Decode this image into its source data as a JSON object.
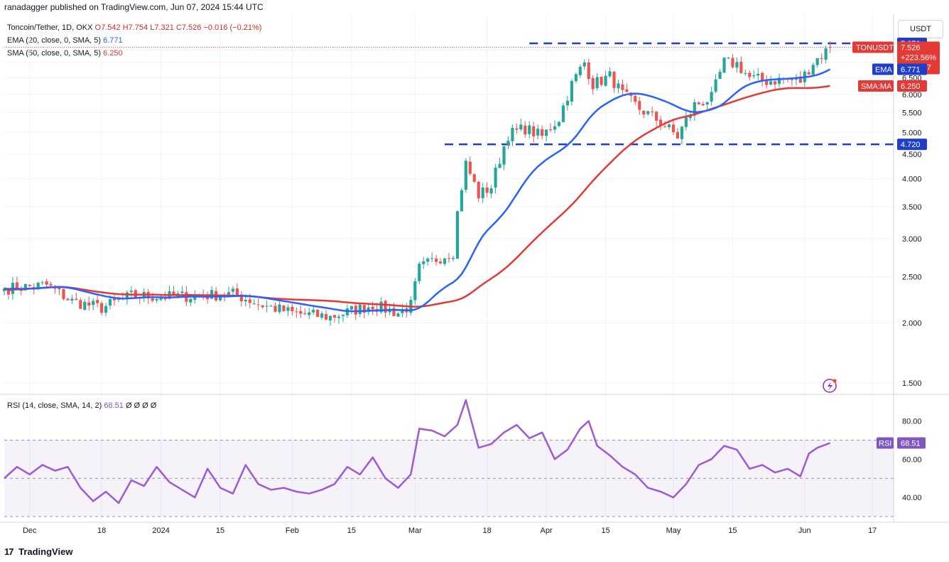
{
  "header": {
    "published": "ranadagger published on TradingView.com, Jun 07, 2024 15:44 UTC"
  },
  "legend": {
    "symbol": "Toncoin/Tether, 1D, OKX",
    "open": "O7.542",
    "high": "H7.754",
    "low": "L7.321",
    "close": "C7.526",
    "change": "−0.016 (−0.21%)",
    "ema_label": "EMA (20, close, 0, SMA, 5)",
    "ema_value": "6.771",
    "sma_label": "SMA (50, close, 0, SMA, 5)",
    "sma_value": "6.250"
  },
  "rsi_legend": {
    "label": "RSI (14, close, SMA, 14, 2)",
    "value": "68.51",
    "extras": "Ø Ø Ø Ø"
  },
  "currency": "USDT",
  "price_tag": {
    "name": "TONUSDT",
    "price": "7.526",
    "change": "+223.56%",
    "countdown": "08:15:27"
  },
  "ema_tag": {
    "name": "EMA",
    "value": "6.771"
  },
  "sma_tag": {
    "name": "SMA:MA",
    "value": "6.250"
  },
  "rsi_tag": {
    "name": "RSI",
    "value": "68.51"
  },
  "footer": {
    "logo_text": "TradingView",
    "logo_mark": "17"
  },
  "colors": {
    "up": "#26a69a",
    "down": "#ef5350",
    "ema": "#2962ff",
    "sma": "#e53935",
    "rsi": "#9c5bd1",
    "level": "#1e3ecb",
    "tag_blue": "#1e3ecb",
    "tag_red": "#e53935"
  },
  "chart_data": [
    {
      "type": "candlestick",
      "title": "Toncoin/Tether, 1D, OKX",
      "y_scale": "log",
      "ylim": [
        1.42,
        8.1
      ],
      "y_ticks": [
        7.0,
        6.5,
        6.0,
        5.5,
        5.0,
        4.5,
        4.0,
        3.5,
        3.0,
        2.5,
        2.0,
        1.5
      ],
      "y_tick_labels": [
        "7.000",
        "6.500",
        "6.000",
        "5.500",
        "5.000",
        "4.500",
        "4.000",
        "3.500",
        "3.000",
        "2.500",
        "2.000",
        "1.500"
      ],
      "x_range": [
        "2023-11-25",
        "2024-06-22"
      ],
      "x_ticks": [
        {
          "date": "2023-12-01",
          "label": "Dec"
        },
        {
          "date": "2023-12-18",
          "label": "18"
        },
        {
          "date": "2024-01-01",
          "label": "2024"
        },
        {
          "date": "2024-01-15",
          "label": "15"
        },
        {
          "date": "2024-02-01",
          "label": "Feb"
        },
        {
          "date": "2024-02-15",
          "label": "15"
        },
        {
          "date": "2024-03-01",
          "label": "Mar"
        },
        {
          "date": "2024-03-18",
          "label": "18"
        },
        {
          "date": "2024-04-01",
          "label": "Apr"
        },
        {
          "date": "2024-04-15",
          "label": "15"
        },
        {
          "date": "2024-05-01",
          "label": "May"
        },
        {
          "date": "2024-05-15",
          "label": "15"
        },
        {
          "date": "2024-06-01",
          "label": "Jun"
        },
        {
          "date": "2024-06-17",
          "label": "17"
        }
      ],
      "horizontal_levels": [
        {
          "value": 7.67,
          "label": "7.670",
          "x_start": "2024-03-28"
        },
        {
          "value": 4.72,
          "label": "4.720",
          "x_start": "2024-03-08"
        }
      ],
      "anchors": [
        {
          "date": "2023-11-25",
          "close": 2.36
        },
        {
          "date": "2023-12-05",
          "close": 2.4
        },
        {
          "date": "2023-12-11",
          "close": 2.22
        },
        {
          "date": "2023-12-18",
          "close": 2.15
        },
        {
          "date": "2023-12-25",
          "close": 2.28
        },
        {
          "date": "2024-01-01",
          "close": 2.27
        },
        {
          "date": "2024-01-10",
          "close": 2.28
        },
        {
          "date": "2024-01-18",
          "close": 2.3
        },
        {
          "date": "2024-01-25",
          "close": 2.18
        },
        {
          "date": "2024-02-01",
          "close": 2.1
        },
        {
          "date": "2024-02-10",
          "close": 2.06
        },
        {
          "date": "2024-02-20",
          "close": 2.18
        },
        {
          "date": "2024-02-26",
          "close": 2.1
        },
        {
          "date": "2024-02-29",
          "close": 2.18
        },
        {
          "date": "2024-03-02",
          "close": 2.6
        },
        {
          "date": "2024-03-06",
          "close": 2.72
        },
        {
          "date": "2024-03-10",
          "close": 2.82
        },
        {
          "date": "2024-03-11",
          "close": 3.4
        },
        {
          "date": "2024-03-13",
          "close": 4.3
        },
        {
          "date": "2024-03-16",
          "close": 3.7
        },
        {
          "date": "2024-03-19",
          "close": 3.85
        },
        {
          "date": "2024-03-23",
          "close": 4.95
        },
        {
          "date": "2024-03-27",
          "close": 5.1
        },
        {
          "date": "2024-03-31",
          "close": 4.9
        },
        {
          "date": "2024-04-04",
          "close": 5.35
        },
        {
          "date": "2024-04-07",
          "close": 6.3
        },
        {
          "date": "2024-04-10",
          "close": 7.0
        },
        {
          "date": "2024-04-12",
          "close": 6.3
        },
        {
          "date": "2024-04-16",
          "close": 6.55
        },
        {
          "date": "2024-04-19",
          "close": 6.0
        },
        {
          "date": "2024-04-23",
          "close": 5.6
        },
        {
          "date": "2024-04-28",
          "close": 5.25
        },
        {
          "date": "2024-05-02",
          "close": 4.9
        },
        {
          "date": "2024-05-06",
          "close": 5.7
        },
        {
          "date": "2024-05-10",
          "close": 5.9
        },
        {
          "date": "2024-05-13",
          "close": 7.0
        },
        {
          "date": "2024-05-16",
          "close": 6.95
        },
        {
          "date": "2024-05-19",
          "close": 6.5
        },
        {
          "date": "2024-05-23",
          "close": 6.4
        },
        {
          "date": "2024-05-27",
          "close": 6.45
        },
        {
          "date": "2024-05-31",
          "close": 6.4
        },
        {
          "date": "2024-06-03",
          "close": 7.0
        },
        {
          "date": "2024-06-05",
          "close": 7.25
        },
        {
          "date": "2024-06-07",
          "close": 7.526
        }
      ],
      "last_candle": {
        "date": "2024-06-07",
        "open": 7.542,
        "high": 7.754,
        "low": 7.321,
        "close": 7.526
      },
      "series": [
        {
          "name": "EMA (20, close, 0, SMA, 5)",
          "last": 6.771
        },
        {
          "name": "SMA (50, close, 0, SMA, 5)",
          "last": 6.25
        }
      ]
    },
    {
      "type": "line",
      "title": "RSI (14, close, SMA, 14, 2)",
      "ylim": [
        27,
        94
      ],
      "y_ticks": [
        80,
        60,
        40
      ],
      "y_tick_labels": [
        "80.00",
        "60.00",
        "40.00"
      ],
      "band": [
        30,
        70
      ],
      "midline": 50,
      "series": [
        {
          "name": "RSI",
          "points": [
            [
              "2023-11-25",
              50
            ],
            [
              "2023-11-28",
              56
            ],
            [
              "2023-12-01",
              52
            ],
            [
              "2023-12-04",
              57
            ],
            [
              "2023-12-07",
              54
            ],
            [
              "2023-12-10",
              56
            ],
            [
              "2023-12-13",
              45
            ],
            [
              "2023-12-16",
              38
            ],
            [
              "2023-12-19",
              43
            ],
            [
              "2023-12-22",
              37
            ],
            [
              "2023-12-25",
              49
            ],
            [
              "2023-12-28",
              46
            ],
            [
              "2023-12-31",
              56
            ],
            [
              "2024-01-03",
              48
            ],
            [
              "2024-01-06",
              44
            ],
            [
              "2024-01-09",
              40
            ],
            [
              "2024-01-12",
              55
            ],
            [
              "2024-01-15",
              45
            ],
            [
              "2024-01-18",
              42
            ],
            [
              "2024-01-21",
              57
            ],
            [
              "2024-01-24",
              47
            ],
            [
              "2024-01-27",
              44
            ],
            [
              "2024-01-30",
              45
            ],
            [
              "2024-02-02",
              43
            ],
            [
              "2024-02-05",
              42
            ],
            [
              "2024-02-08",
              44
            ],
            [
              "2024-02-11",
              47
            ],
            [
              "2024-02-14",
              56
            ],
            [
              "2024-02-17",
              52
            ],
            [
              "2024-02-20",
              61
            ],
            [
              "2024-02-23",
              50
            ],
            [
              "2024-02-26",
              45
            ],
            [
              "2024-02-29",
              52
            ],
            [
              "2024-03-02",
              76
            ],
            [
              "2024-03-05",
              75
            ],
            [
              "2024-03-08",
              72
            ],
            [
              "2024-03-11",
              78
            ],
            [
              "2024-03-13",
              91
            ],
            [
              "2024-03-16",
              66
            ],
            [
              "2024-03-19",
              68
            ],
            [
              "2024-03-22",
              74
            ],
            [
              "2024-03-25",
              78
            ],
            [
              "2024-03-28",
              71
            ],
            [
              "2024-03-31",
              74
            ],
            [
              "2024-04-03",
              60
            ],
            [
              "2024-04-06",
              65
            ],
            [
              "2024-04-09",
              76
            ],
            [
              "2024-04-11",
              80
            ],
            [
              "2024-04-13",
              67
            ],
            [
              "2024-04-16",
              62
            ],
            [
              "2024-04-19",
              56
            ],
            [
              "2024-04-22",
              52
            ],
            [
              "2024-04-25",
              45
            ],
            [
              "2024-04-28",
              43
            ],
            [
              "2024-05-01",
              40
            ],
            [
              "2024-05-04",
              47
            ],
            [
              "2024-05-07",
              57
            ],
            [
              "2024-05-10",
              60
            ],
            [
              "2024-05-13",
              67
            ],
            [
              "2024-05-16",
              65
            ],
            [
              "2024-05-19",
              55
            ],
            [
              "2024-05-22",
              57
            ],
            [
              "2024-05-25",
              53
            ],
            [
              "2024-05-28",
              55
            ],
            [
              "2024-05-31",
              51
            ],
            [
              "2024-06-02",
              63
            ],
            [
              "2024-06-04",
              66
            ],
            [
              "2024-06-07",
              68.51
            ]
          ]
        }
      ]
    }
  ]
}
